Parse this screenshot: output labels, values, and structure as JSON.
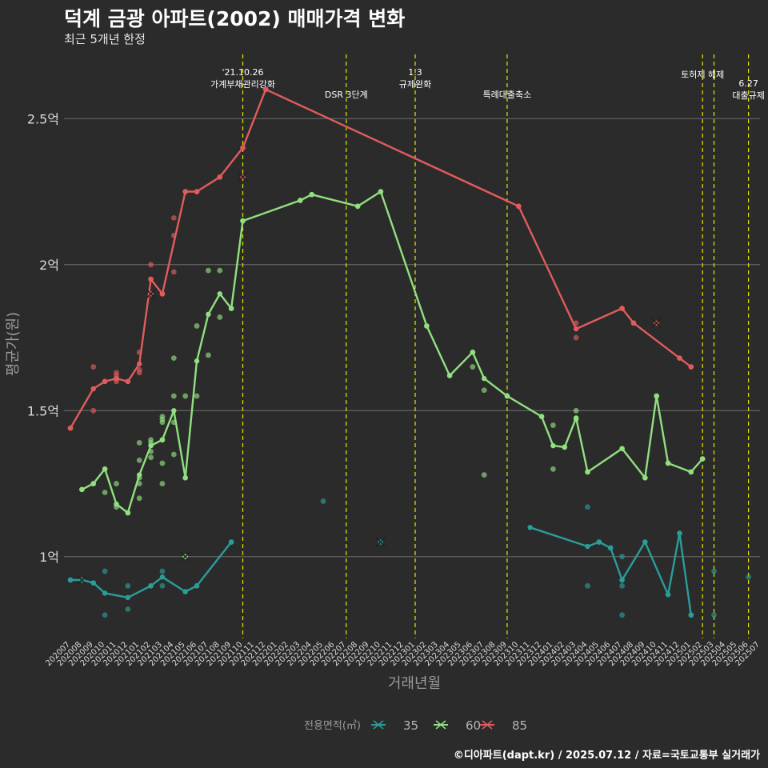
{
  "title": "덕계 금광 아파트(2002) 매매가격 변화",
  "subtitle": "최근 5개년 한정",
  "caption": "©디아파트(dapt.kr) / 2025.07.12 / 자료=국토교통부 실거래가",
  "chart_data": {
    "type": "line",
    "xlabel": "거래년월",
    "ylabel": "평균가(원)",
    "x_ticks": [
      "202007",
      "202008",
      "202009",
      "202010",
      "202011",
      "202012",
      "202101",
      "202102",
      "202103",
      "202104",
      "202105",
      "202106",
      "202107",
      "202108",
      "202109",
      "202110",
      "202111",
      "202112",
      "202201",
      "202202",
      "202203",
      "202204",
      "202205",
      "202206",
      "202207",
      "202208",
      "202209",
      "202210",
      "202211",
      "202212",
      "202301",
      "202302",
      "202303",
      "202304",
      "202305",
      "202306",
      "202307",
      "202308",
      "202309",
      "202310",
      "202311",
      "202312",
      "202401",
      "202402",
      "202403",
      "202404",
      "202405",
      "202406",
      "202407",
      "202408",
      "202409",
      "202410",
      "202411",
      "202412",
      "202501",
      "202502",
      "202503",
      "202504",
      "202505",
      "202506",
      "202507"
    ],
    "y_ticks": [
      1.0,
      1.5,
      2.0,
      2.5
    ],
    "y_tick_labels": [
      "1억",
      "1.5억",
      "2억",
      "2.5억"
    ],
    "ylim": [
      0.72,
      2.72
    ],
    "grid": true,
    "legend": {
      "position": "bottom",
      "title": "전용면적(㎡)"
    },
    "series": [
      {
        "name": "35",
        "color": "#2a9d98",
        "segments": [
          [
            [
              "202007",
              0.92
            ],
            [
              "202008",
              0.92
            ],
            [
              "202009",
              0.91
            ],
            [
              "202010",
              0.875
            ],
            [
              "202012",
              0.86
            ],
            [
              "202102",
              0.9
            ],
            [
              "202103",
              0.93
            ],
            [
              "202105",
              0.88
            ],
            [
              "202106",
              0.9
            ],
            [
              "202109",
              1.05
            ]
          ],
          [
            [
              "202311",
              1.1
            ],
            [
              "202404",
              1.035
            ],
            [
              "202405",
              1.05
            ],
            [
              "202406",
              1.03
            ],
            [
              "202407",
              0.92
            ],
            [
              "202409",
              1.05
            ],
            [
              "202411",
              0.87
            ],
            [
              "202412",
              1.08
            ],
            [
              "202501",
              0.8
            ]
          ]
        ],
        "points": [
          [
            "202007",
            0.92
          ],
          [
            "202008",
            0.92
          ],
          [
            "202009",
            0.91
          ],
          [
            "202010",
            0.95
          ],
          [
            "202010",
            0.8
          ],
          [
            "202012",
            0.9
          ],
          [
            "202012",
            0.82
          ],
          [
            "202102",
            0.9
          ],
          [
            "202103",
            0.95
          ],
          [
            "202103",
            0.9
          ],
          [
            "202105",
            0.88
          ],
          [
            "202106",
            0.9
          ],
          [
            "202109",
            1.05
          ],
          [
            "202205",
            1.19
          ],
          [
            "202404",
            0.9
          ],
          [
            "202404",
            1.17
          ],
          [
            "202405",
            1.05
          ],
          [
            "202406",
            1.03
          ],
          [
            "202407",
            1.0
          ],
          [
            "202407",
            0.92
          ],
          [
            "202407",
            0.9
          ],
          [
            "202407",
            0.8
          ],
          [
            "202409",
            1.05
          ],
          [
            "202411",
            0.87
          ],
          [
            "202412",
            1.08
          ],
          [
            "202501",
            0.8
          ],
          [
            "202503",
            0.95
          ],
          [
            "202503",
            0.8
          ],
          [
            "202506",
            0.93
          ]
        ],
        "x_marks": [
          [
            "202008",
            0.92
          ],
          [
            "202210",
            1.05
          ]
        ]
      },
      {
        "name": "60",
        "color": "#90e07f",
        "segments": [
          [
            [
              "202008",
              1.23
            ],
            [
              "202009",
              1.25
            ],
            [
              "202010",
              1.3
            ],
            [
              "202011",
              1.18
            ],
            [
              "202012",
              1.15
            ],
            [
              "202101",
              1.28
            ],
            [
              "202102",
              1.38
            ],
            [
              "202103",
              1.4
            ],
            [
              "202104",
              1.5
            ],
            [
              "202105",
              1.27
            ],
            [
              "202106",
              1.67
            ],
            [
              "202107",
              1.83
            ],
            [
              "202108",
              1.9
            ],
            [
              "202109",
              1.85
            ],
            [
              "202110",
              2.15
            ],
            [
              "202203",
              2.22
            ],
            [
              "202204",
              2.24
            ],
            [
              "202208",
              2.2
            ],
            [
              "202210",
              2.25
            ],
            [
              "202302",
              1.79
            ],
            [
              "202304",
              1.62
            ],
            [
              "202306",
              1.7
            ],
            [
              "202307",
              1.61
            ],
            [
              "202309",
              1.55
            ],
            [
              "202312",
              1.48
            ],
            [
              "202401",
              1.38
            ],
            [
              "202402",
              1.375
            ],
            [
              "202403",
              1.475
            ],
            [
              "202404",
              1.29
            ],
            [
              "202407",
              1.37
            ],
            [
              "202409",
              1.27
            ],
            [
              "202410",
              1.55
            ],
            [
              "202411",
              1.32
            ],
            [
              "202501",
              1.29
            ],
            [
              "202502",
              1.335
            ]
          ]
        ],
        "points": [
          [
            "202008",
            1.23
          ],
          [
            "202009",
            1.25
          ],
          [
            "202010",
            1.3
          ],
          [
            "202010",
            1.22
          ],
          [
            "202011",
            1.25
          ],
          [
            "202011",
            1.17
          ],
          [
            "202012",
            1.15
          ],
          [
            "202101",
            1.39
          ],
          [
            "202101",
            1.33
          ],
          [
            "202101",
            1.27
          ],
          [
            "202101",
            1.25
          ],
          [
            "202101",
            1.2
          ],
          [
            "202102",
            1.4
          ],
          [
            "202102",
            1.39
          ],
          [
            "202102",
            1.36
          ],
          [
            "202102",
            1.34
          ],
          [
            "202103",
            1.48
          ],
          [
            "202103",
            1.47
          ],
          [
            "202103",
            1.46
          ],
          [
            "202103",
            1.4
          ],
          [
            "202103",
            1.32
          ],
          [
            "202103",
            1.25
          ],
          [
            "202104",
            1.68
          ],
          [
            "202104",
            1.55
          ],
          [
            "202104",
            1.46
          ],
          [
            "202104",
            1.35
          ],
          [
            "202105",
            1.55
          ],
          [
            "202105",
            1.27
          ],
          [
            "202106",
            1.79
          ],
          [
            "202106",
            1.55
          ],
          [
            "202107",
            1.98
          ],
          [
            "202107",
            1.69
          ],
          [
            "202108",
            1.98
          ],
          [
            "202108",
            1.82
          ],
          [
            "202109",
            1.85
          ],
          [
            "202110",
            2.15
          ],
          [
            "202203",
            2.22
          ],
          [
            "202204",
            2.24
          ],
          [
            "202208",
            2.2
          ],
          [
            "202210",
            2.25
          ],
          [
            "202302",
            1.79
          ],
          [
            "202304",
            1.62
          ],
          [
            "202306",
            1.7
          ],
          [
            "202306",
            1.65
          ],
          [
            "202307",
            1.57
          ],
          [
            "202307",
            1.28
          ],
          [
            "202309",
            1.55
          ],
          [
            "202312",
            1.48
          ],
          [
            "202401",
            1.45
          ],
          [
            "202401",
            1.3
          ],
          [
            "202402",
            1.375
          ],
          [
            "202403",
            1.5
          ],
          [
            "202403",
            1.47
          ],
          [
            "202404",
            1.29
          ],
          [
            "202407",
            1.37
          ],
          [
            "202409",
            1.27
          ],
          [
            "202410",
            1.55
          ],
          [
            "202411",
            1.32
          ],
          [
            "202501",
            1.29
          ],
          [
            "202502",
            1.335
          ]
        ],
        "x_marks": [
          [
            "202105",
            1.0
          ]
        ]
      },
      {
        "name": "85",
        "color": "#e05c5c",
        "segments": [
          [
            [
              "202007",
              1.44
            ],
            [
              "202009",
              1.575
            ],
            [
              "202010",
              1.6
            ],
            [
              "202011",
              1.61
            ],
            [
              "202012",
              1.6
            ],
            [
              "202101",
              1.66
            ],
            [
              "202102",
              1.95
            ],
            [
              "202103",
              1.9
            ],
            [
              "202105",
              2.25
            ],
            [
              "202106",
              2.25
            ],
            [
              "202108",
              2.3
            ],
            [
              "202110",
              2.4
            ],
            [
              "202112",
              2.6
            ],
            [
              "202310",
              2.2
            ],
            [
              "202403",
              1.78
            ],
            [
              "202407",
              1.85
            ],
            [
              "202408",
              1.8
            ],
            [
              "202412",
              1.68
            ],
            [
              "202501",
              1.65
            ]
          ]
        ],
        "points": [
          [
            "202007",
            1.44
          ],
          [
            "202009",
            1.65
          ],
          [
            "202009",
            1.5
          ],
          [
            "202010",
            1.6
          ],
          [
            "202011",
            1.63
          ],
          [
            "202011",
            1.62
          ],
          [
            "202011",
            1.61
          ],
          [
            "202011",
            1.6
          ],
          [
            "202012",
            1.6
          ],
          [
            "202101",
            1.7
          ],
          [
            "202101",
            1.64
          ],
          [
            "202101",
            1.63
          ],
          [
            "202102",
            2.0
          ],
          [
            "202102",
            1.95
          ],
          [
            "202103",
            1.9
          ],
          [
            "202104",
            2.16
          ],
          [
            "202104",
            2.1
          ],
          [
            "202104",
            1.975
          ],
          [
            "202105",
            2.25
          ],
          [
            "202106",
            2.25
          ],
          [
            "202108",
            2.3
          ],
          [
            "202110",
            2.4
          ],
          [
            "202112",
            2.6
          ],
          [
            "202310",
            2.2
          ],
          [
            "202403",
            1.8
          ],
          [
            "202403",
            1.75
          ],
          [
            "202407",
            1.85
          ],
          [
            "202408",
            1.8
          ],
          [
            "202412",
            1.68
          ],
          [
            "202501",
            1.65
          ]
        ],
        "x_marks": [
          [
            "202102",
            1.9
          ],
          [
            "202110",
            2.3
          ],
          [
            "202410",
            1.8
          ]
        ]
      }
    ],
    "events": [
      {
        "x": "202110",
        "label": [
          "'21.10.26",
          "가계부채관리강화"
        ]
      },
      {
        "x": "202207",
        "label": [
          "DSR 3단계"
        ]
      },
      {
        "x": "202301",
        "label": [
          "1.3",
          "규제완화"
        ]
      },
      {
        "x": "202309",
        "label": [
          "특례대출축소"
        ]
      },
      {
        "x": "202502",
        "label": [
          "토허제 해제"
        ]
      },
      {
        "x": "202503",
        "label": []
      },
      {
        "x": "202506",
        "label": [
          "6.27",
          "대출규제"
        ]
      }
    ],
    "event_color": "#e6e600"
  }
}
